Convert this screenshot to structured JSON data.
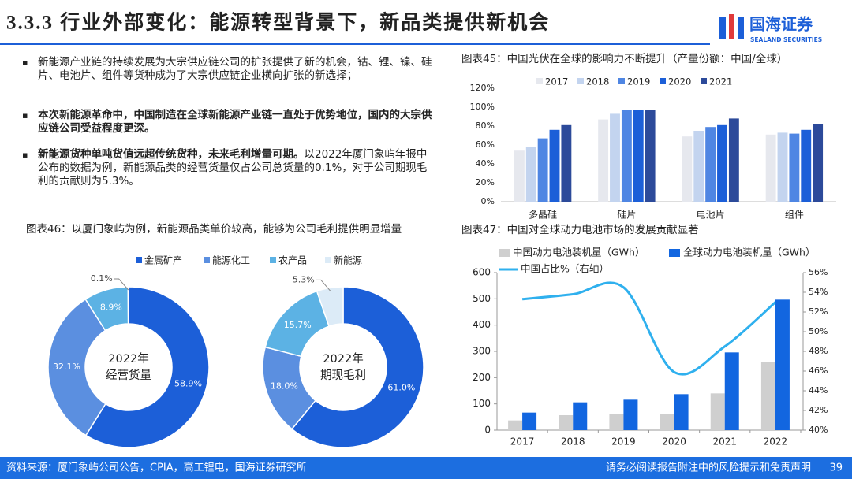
{
  "header": {
    "title": "3.3.3 行业外部变化：能源转型背景下，新品类提供新机会",
    "logo": "国海证券",
    "logo_en": "SEALAND SECURITIES"
  },
  "bullets": [
    {
      "text": "新能源产业链的持续发展为大宗供应链公司的扩张提供了新的机会，钴、锂、镍、硅片、电池片、组件等货种成为了大宗供应链企业横向扩张的新选择；"
    },
    {
      "bold": "本次新能源革命中，中国制造在全球新能源产业链一直处于优势地位，国内的大宗供应链公司受益程度更深。"
    },
    {
      "bold": "新能源货种单吨货值远超传统货种，未来毛利增量可期。",
      "text": "以2022年厦门象屿年报中公布的数据为例，新能源品类的经营货量仅占公司总货量的0.1%，对于公司期现毛利的贡献则为5.3%。"
    }
  ],
  "chart_data": [
    {
      "type": "bar",
      "title": "图表45：中国光伏在全球的影响力不断提升（产量份额：中国/全球）",
      "categories": [
        "多晶硅",
        "硅片",
        "电池片",
        "组件"
      ],
      "series": [
        {
          "name": "2017",
          "color": "#e6e8ee",
          "values": [
            54,
            87,
            69,
            71
          ]
        },
        {
          "name": "2018",
          "color": "#c3d4ef",
          "values": [
            58,
            93,
            75,
            73
          ]
        },
        {
          "name": "2019",
          "color": "#4f86e3",
          "values": [
            67,
            97,
            79,
            72
          ]
        },
        {
          "name": "2020",
          "color": "#1c5fd8",
          "values": [
            76,
            97,
            81,
            76
          ]
        },
        {
          "name": "2021",
          "color": "#2c4a9a",
          "values": [
            81,
            97,
            88,
            82
          ]
        }
      ],
      "ylim": [
        0,
        120
      ],
      "yticks": [
        {
          "value": 0,
          "label": "0%"
        },
        {
          "value": 20,
          "label": "20%"
        },
        {
          "value": 40,
          "label": "40%"
        },
        {
          "value": 60,
          "label": "60%"
        },
        {
          "value": 80,
          "label": "80%"
        },
        {
          "value": 100,
          "label": "100%"
        },
        {
          "value": 120,
          "label": "120%"
        }
      ],
      "grid": false
    },
    {
      "type": "donut",
      "title": "图表46：以厦门象屿为例，新能源品类单价较高，能够为公司毛利提供明显增量",
      "labels": [
        "金属矿产",
        "能源化工",
        "农产品",
        "新能源"
      ],
      "colors": [
        "#1c5fd8",
        "#5b8fe0",
        "#5cb2e4",
        "#dcebf7"
      ],
      "pies": [
        {
          "center_label": [
            "2022年",
            "经营货量"
          ],
          "values": [
            58.9,
            32.1,
            8.9,
            0.1
          ],
          "value_labels": [
            "58.9%",
            "32.1%",
            "8.9%",
            "0.1%"
          ]
        },
        {
          "center_label": [
            "2022年",
            "期现毛利"
          ],
          "values": [
            61.0,
            18.0,
            15.7,
            5.3
          ],
          "value_labels": [
            "61.0%",
            "18.0%",
            "15.7%",
            "5.3%"
          ]
        }
      ]
    },
    {
      "type": "combo",
      "title": "图表47：中国对全球动力电池市场的发展贡献显著",
      "categories": [
        "2017",
        "2018",
        "2019",
        "2020",
        "2021",
        "2022"
      ],
      "series": [
        {
          "name": "中国动力电池装机量（GWh）",
          "type": "bar",
          "color": "#cfcfcf",
          "values": [
            37,
            57,
            62,
            63,
            140,
            260
          ]
        },
        {
          "name": "全球动力电池装机量（GWh）",
          "type": "bar",
          "color": "#1266e0",
          "values": [
            67,
            106,
            116,
            137,
            296,
            497
          ]
        },
        {
          "name": "中国占比%（右轴）",
          "type": "line",
          "axis": "y2",
          "color": "#2fb0ee",
          "values": [
            53.3,
            53.8,
            54.5,
            45.9,
            48.5,
            53.0
          ]
        }
      ],
      "ylim": [
        0,
        600
      ],
      "yticks": [
        0,
        100,
        200,
        300,
        400,
        500,
        600
      ],
      "y2lim": [
        40,
        56
      ],
      "y2ticks": [
        {
          "value": 40,
          "label": "40%"
        },
        {
          "value": 42,
          "label": "42%"
        },
        {
          "value": 44,
          "label": "44%"
        },
        {
          "value": 46,
          "label": "46%"
        },
        {
          "value": 48,
          "label": "48%"
        },
        {
          "value": 50,
          "label": "50%"
        },
        {
          "value": 52,
          "label": "52%"
        },
        {
          "value": 54,
          "label": "54%"
        },
        {
          "value": 56,
          "label": "56%"
        }
      ]
    }
  ],
  "footer": {
    "source": "资料来源：厦门象屿公司公告，CPIA，高工锂电，国海证券研究所",
    "disclaimer": "请务必阅读报告附注中的风险提示和免责声明",
    "page": 39
  }
}
